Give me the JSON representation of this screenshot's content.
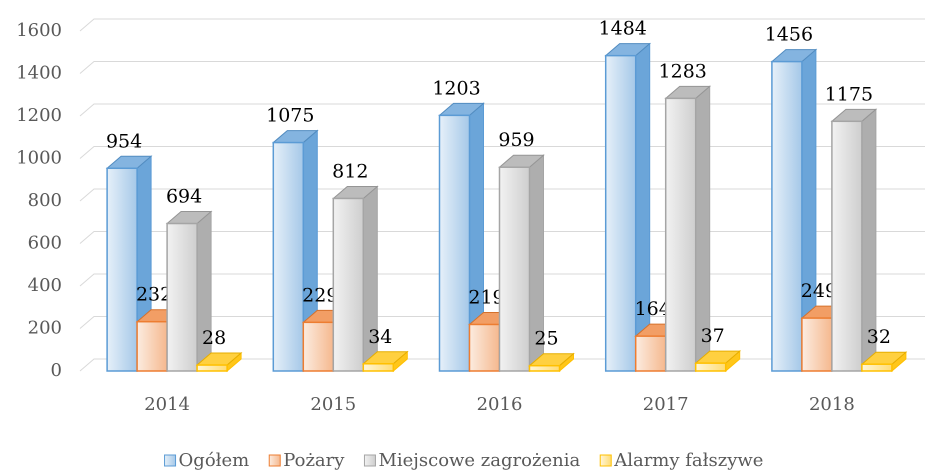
{
  "chart_data": {
    "type": "bar3d",
    "categories": [
      "2014",
      "2015",
      "2016",
      "2017",
      "2018"
    ],
    "series": [
      {
        "name": "Ogółem",
        "color": "#5b9bd5",
        "values": [
          954,
          1075,
          1203,
          1484,
          1456
        ]
      },
      {
        "name": "Pożary",
        "color": "#ed7d31",
        "values": [
          232,
          229,
          219,
          164,
          249
        ]
      },
      {
        "name": "Miejscowe zagrożenia",
        "color": "#a5a5a5",
        "values": [
          694,
          812,
          959,
          1283,
          1175
        ]
      },
      {
        "name": "Alarmy fałszywe",
        "color": "#ffc000",
        "values": [
          28,
          34,
          25,
          37,
          32
        ]
      }
    ],
    "ylim": [
      0,
      1600
    ],
    "yticks": [
      0,
      200,
      400,
      600,
      800,
      1000,
      1200,
      1400,
      1600
    ],
    "grid": true,
    "legend": "bottom"
  }
}
